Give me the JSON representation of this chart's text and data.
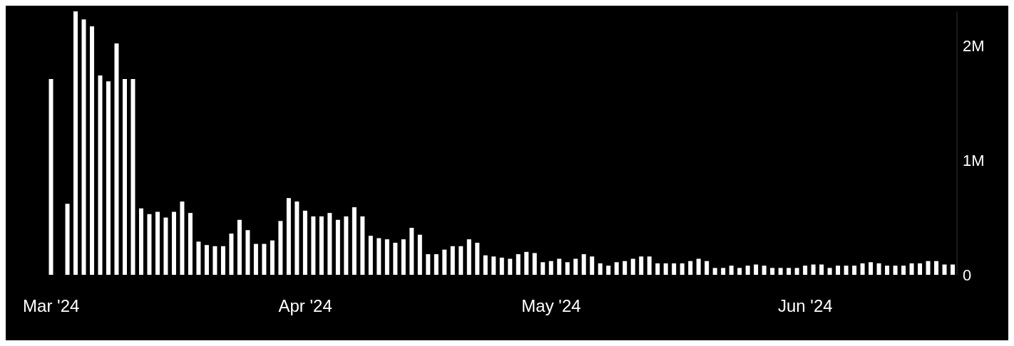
{
  "chart_data": {
    "type": "bar",
    "categories": [
      "Mar '24",
      null,
      null,
      null,
      null,
      null,
      null,
      null,
      null,
      null,
      null,
      null,
      null,
      null,
      null,
      null,
      null,
      null,
      null,
      null,
      null,
      null,
      null,
      null,
      null,
      null,
      null,
      null,
      null,
      null,
      null,
      "Apr '24",
      null,
      null,
      null,
      null,
      null,
      null,
      null,
      null,
      null,
      null,
      null,
      null,
      null,
      null,
      null,
      null,
      null,
      null,
      null,
      null,
      null,
      null,
      null,
      null,
      null,
      null,
      null,
      null,
      null,
      "May '24",
      null,
      null,
      null,
      null,
      null,
      null,
      null,
      null,
      null,
      null,
      null,
      null,
      null,
      null,
      null,
      null,
      null,
      null,
      null,
      null,
      null,
      null,
      null,
      null,
      null,
      null,
      null,
      null,
      null,
      null,
      "Jun '24",
      null,
      null,
      null,
      null,
      null,
      null,
      null,
      null,
      null,
      null,
      null,
      null,
      null,
      null,
      null,
      null,
      null,
      null
    ],
    "values": [
      1710000,
      0,
      620000,
      2300000,
      2230000,
      2170000,
      1740000,
      1690000,
      2020000,
      1710000,
      1710000,
      580000,
      530000,
      550000,
      500000,
      550000,
      640000,
      540000,
      290000,
      260000,
      250000,
      250000,
      360000,
      480000,
      390000,
      270000,
      270000,
      300000,
      470000,
      670000,
      640000,
      560000,
      510000,
      510000,
      540000,
      480000,
      510000,
      590000,
      510000,
      340000,
      320000,
      310000,
      280000,
      310000,
      410000,
      350000,
      180000,
      180000,
      220000,
      250000,
      250000,
      310000,
      280000,
      170000,
      160000,
      150000,
      140000,
      180000,
      200000,
      190000,
      110000,
      120000,
      140000,
      110000,
      140000,
      180000,
      160000,
      100000,
      80000,
      110000,
      120000,
      140000,
      160000,
      160000,
      100000,
      100000,
      100000,
      100000,
      120000,
      140000,
      120000,
      60000,
      60000,
      80000,
      60000,
      80000,
      90000,
      80000,
      60000,
      60000,
      60000,
      60000,
      80000,
      90000,
      90000,
      60000,
      80000,
      80000,
      80000,
      100000,
      110000,
      100000,
      80000,
      80000,
      80000,
      100000,
      100000,
      120000,
      120000,
      90000,
      90000
    ],
    "color": "#ffffff",
    "ylim": [
      0,
      2300000
    ],
    "yticks": [
      {
        "value": 0,
        "label": "0"
      },
      {
        "value": 1000000,
        "label": "1M"
      },
      {
        "value": 2000000,
        "label": "2M"
      }
    ]
  }
}
